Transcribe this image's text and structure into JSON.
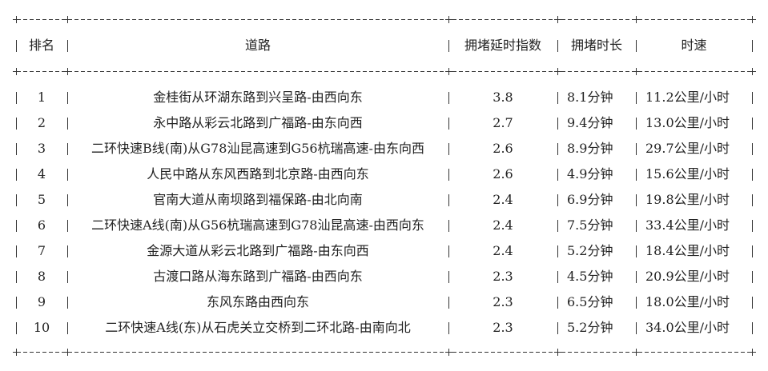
{
  "table": {
    "headers": [
      "排名",
      "道路",
      "拥堵延时指数",
      "拥堵时长",
      "时速"
    ],
    "rows": [
      {
        "rank": "1",
        "road": "金桂街从环湖东路到兴呈路-由西向东",
        "index": "3.8",
        "duration": "8.1分钟",
        "speed": "11.2公里/小时"
      },
      {
        "rank": "2",
        "road": "永中路从彩云北路到广福路-由东向西",
        "index": "2.7",
        "duration": "9.4分钟",
        "speed": "13.0公里/小时"
      },
      {
        "rank": "3",
        "road": "二环快速B线(南)从G78汕昆高速到G56杭瑞高速-由东向西",
        "index": "2.6",
        "duration": "8.9分钟",
        "speed": "29.7公里/小时"
      },
      {
        "rank": "4",
        "road": "人民中路从东风西路到北京路-由西向东",
        "index": "2.6",
        "duration": "4.9分钟",
        "speed": "15.6公里/小时"
      },
      {
        "rank": "5",
        "road": "官南大道从南坝路到福保路-由北向南",
        "index": "2.4",
        "duration": "6.9分钟",
        "speed": "19.8公里/小时"
      },
      {
        "rank": "6",
        "road": "二环快速A线(南)从G56杭瑞高速到G78汕昆高速-由西向东",
        "index": "2.4",
        "duration": "7.5分钟",
        "speed": "33.4公里/小时"
      },
      {
        "rank": "7",
        "road": "金源大道从彩云北路到广福路-由东向西",
        "index": "2.4",
        "duration": "5.2分钟",
        "speed": "18.4公里/小时"
      },
      {
        "rank": "8",
        "road": "古渡口路从海东路到广福路-由西向东",
        "index": "2.3",
        "duration": "4.5分钟",
        "speed": "20.9公里/小时"
      },
      {
        "rank": "9",
        "road": "东风东路由西向东",
        "index": "2.3",
        "duration": "6.5分钟",
        "speed": "18.0公里/小时"
      },
      {
        "rank": "10",
        "road": "二环快速A线(东)从石虎关立交桥到二环北路-由南向北",
        "index": "2.3",
        "duration": "5.2分钟",
        "speed": "34.0公里/小时"
      }
    ]
  }
}
